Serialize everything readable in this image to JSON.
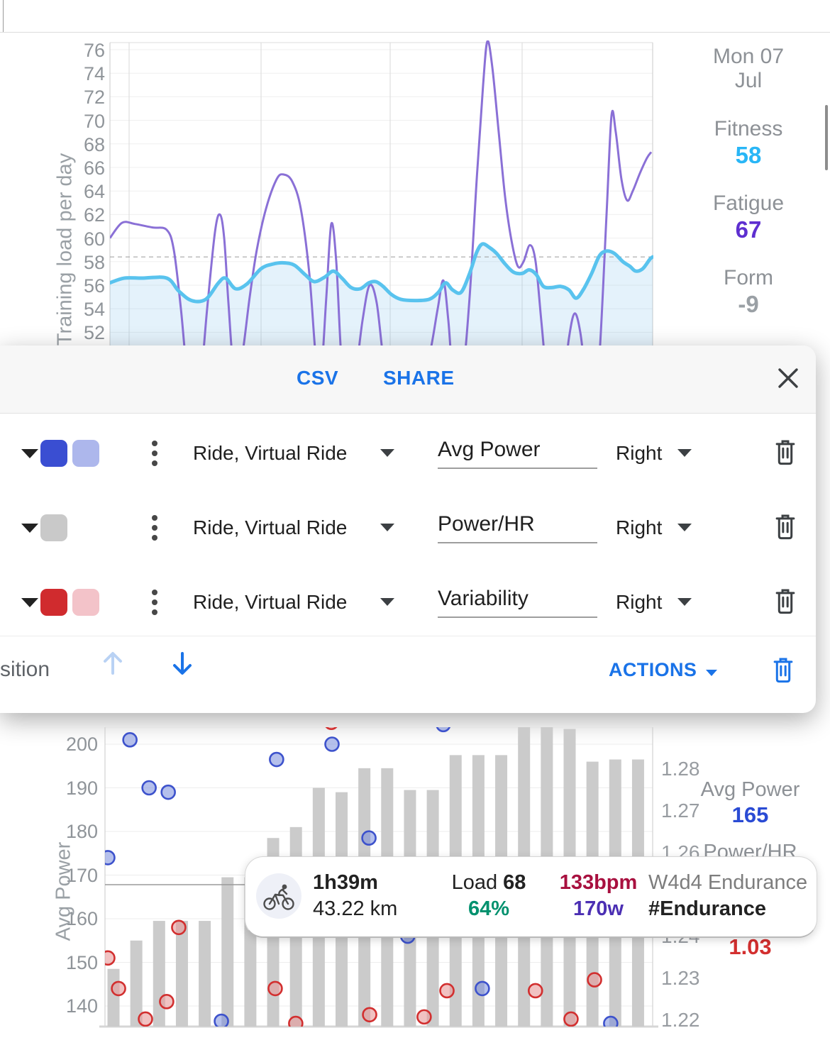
{
  "fitness_panel": {
    "date_line1": "Mon 07",
    "date_line2": "Jul",
    "fitness_label": "Fitness",
    "fitness_value": "58",
    "fitness_color": "#29b6f6",
    "fatigue_label": "Fatigue",
    "fatigue_value": "67",
    "fatigue_color": "#5e2fd0",
    "form_label": "Form",
    "form_value": "-9",
    "form_color": "#9aa0a5"
  },
  "dialog": {
    "csv_label": "CSV",
    "share_label": "SHARE",
    "rows": [
      {
        "sport": "Ride, Virtual Ride",
        "field": "Avg Power",
        "axis": "Right",
        "colors": [
          "#3a4ed2",
          "#adb7ec"
        ]
      },
      {
        "sport": "Ride, Virtual Ride",
        "field": "Power/HR",
        "axis": "Right",
        "colors": [
          "#c9c9c9"
        ]
      },
      {
        "sport": "Ride, Virtual Ride",
        "field": "Variability",
        "axis": "Right",
        "colors": [
          "#d02b2e",
          "#f3c3c9"
        ]
      }
    ],
    "footer": {
      "position_text": "sition",
      "actions_label": "ACTIONS"
    }
  },
  "power_panel": {
    "avg_power_label": "Avg Power",
    "avg_power_value": "165",
    "avg_power_color": "#2a4bd4",
    "power_hr_label": "Power/HR",
    "variability_label": "Variability",
    "variability_value": "1.03",
    "variability_color": "#d32f2f"
  },
  "tooltip": {
    "duration": "1h39m",
    "distance": "43.22 km",
    "load_label": "Load ",
    "load_value": "68",
    "intensity": "64%",
    "intensity_color": "#00916e",
    "heart_rate": "133bpm",
    "heart_rate_color": "#a8103f",
    "power": "170w",
    "power_color": "#4b2fb3",
    "title": "W4d4 Endurance",
    "tag": "#Endurance"
  },
  "chart_data": [
    {
      "id": "training_load",
      "type": "line",
      "ylabel": "Training load per day",
      "yticks": [
        76,
        74,
        72,
        70,
        68,
        66,
        64,
        62,
        60,
        58,
        56,
        54,
        52
      ],
      "ylim": [
        51,
        77
      ],
      "dashed_ref": 58.4,
      "x_gridlines": [
        182,
        368,
        550,
        736
      ],
      "series": [
        {
          "name": "Fitness",
          "color": "#59c3ee",
          "width": 5,
          "fill": "rgba(130,195,235,0.22)",
          "points": [
            [
              155,
              56.2
            ],
            [
              175,
              56.6
            ],
            [
              200,
              56.6
            ],
            [
              235,
              56.6
            ],
            [
              252,
              55.5
            ],
            [
              270,
              54.7
            ],
            [
              290,
              54.8
            ],
            [
              308,
              56.2
            ],
            [
              318,
              56.6
            ],
            [
              332,
              55.7
            ],
            [
              348,
              56.1
            ],
            [
              368,
              57.4
            ],
            [
              385,
              57.8
            ],
            [
              400,
              57.9
            ],
            [
              415,
              57.7
            ],
            [
              430,
              56.9
            ],
            [
              443,
              56.3
            ],
            [
              458,
              56.7
            ],
            [
              470,
              57.2
            ],
            [
              482,
              56.6
            ],
            [
              495,
              55.8
            ],
            [
              508,
              55.7
            ],
            [
              520,
              56.2
            ],
            [
              530,
              56.3
            ],
            [
              540,
              55.9
            ],
            [
              552,
              55.2
            ],
            [
              565,
              54.8
            ],
            [
              585,
              54.7
            ],
            [
              605,
              54.8
            ],
            [
              618,
              55.4
            ],
            [
              628,
              56.2
            ],
            [
              638,
              55.6
            ],
            [
              650,
              55.4
            ],
            [
              662,
              57
            ],
            [
              672,
              58.8
            ],
            [
              680,
              59.5
            ],
            [
              690,
              59.2
            ],
            [
              700,
              58.7
            ],
            [
              712,
              57.8
            ],
            [
              724,
              57.1
            ],
            [
              736,
              57
            ],
            [
              746,
              57.3
            ],
            [
              756,
              56.9
            ],
            [
              766,
              55.9
            ],
            [
              778,
              55.8
            ],
            [
              790,
              55.9
            ],
            [
              802,
              55.6
            ],
            [
              812,
              54.9
            ],
            [
              822,
              55.6
            ],
            [
              834,
              57
            ],
            [
              845,
              58.5
            ],
            [
              855,
              58.9
            ],
            [
              866,
              58.7
            ],
            [
              878,
              58
            ],
            [
              888,
              57.6
            ],
            [
              896,
              57.2
            ],
            [
              906,
              57.4
            ],
            [
              916,
              58.2
            ],
            [
              920,
              58.4
            ]
          ]
        },
        {
          "name": "Fatigue",
          "color": "#8a70d6",
          "width": 3,
          "points": [
            [
              155,
              60
            ],
            [
              172,
              61.3
            ],
            [
              190,
              61.2
            ],
            [
              215,
              60.9
            ],
            [
              235,
              60.7
            ],
            [
              245,
              59
            ],
            [
              255,
              54
            ],
            [
              263,
              49
            ],
            [
              272,
              46.5
            ],
            [
              282,
              47.5
            ],
            [
              292,
              54
            ],
            [
              303,
              60.5
            ],
            [
              310,
              62
            ],
            [
              316,
              60
            ],
            [
              322,
              54.5
            ],
            [
              330,
              48.5
            ],
            [
              340,
              49.5
            ],
            [
              352,
              55
            ],
            [
              362,
              59
            ],
            [
              375,
              62.5
            ],
            [
              390,
              65
            ],
            [
              400,
              65.4
            ],
            [
              412,
              64.8
            ],
            [
              424,
              62.5
            ],
            [
              436,
              57
            ],
            [
              445,
              50
            ],
            [
              452,
              48
            ],
            [
              460,
              55
            ],
            [
              467,
              61.2
            ],
            [
              474,
              58
            ],
            [
              481,
              50
            ],
            [
              489,
              46.5
            ],
            [
              500,
              48
            ],
            [
              511,
              53
            ],
            [
              521,
              56
            ],
            [
              531,
              54.5
            ],
            [
              541,
              49.5
            ],
            [
              552,
              46.8
            ],
            [
              570,
              47
            ],
            [
              590,
              48
            ],
            [
              605,
              50
            ],
            [
              617,
              54
            ],
            [
              625,
              56.4
            ],
            [
              632,
              53
            ],
            [
              640,
              47.5
            ],
            [
              652,
              48.5
            ],
            [
              662,
              55
            ],
            [
              672,
              65
            ],
            [
              681,
              73
            ],
            [
              687,
              76.7
            ],
            [
              694,
              74.5
            ],
            [
              703,
              69
            ],
            [
              712,
              63.5
            ],
            [
              721,
              59.8
            ],
            [
              730,
              57.6
            ],
            [
              738,
              58
            ],
            [
              747,
              59.4
            ],
            [
              755,
              58
            ],
            [
              763,
              53
            ],
            [
              772,
              47.5
            ],
            [
              782,
              45
            ],
            [
              792,
              46.5
            ],
            [
              802,
              51.5
            ],
            [
              810,
              53.6
            ],
            [
              818,
              52
            ],
            [
              826,
              48
            ],
            [
              835,
              44.5
            ],
            [
              845,
              50
            ],
            [
              855,
              62
            ],
            [
              862,
              70.4
            ],
            [
              868,
              69
            ],
            [
              876,
              65
            ],
            [
              884,
              63.2
            ],
            [
              892,
              64
            ],
            [
              902,
              65.5
            ],
            [
              912,
              66.8
            ],
            [
              918,
              67.3
            ]
          ]
        }
      ]
    },
    {
      "id": "avg_power",
      "type": "bar+scatter",
      "ylabel": "Avg Power",
      "left_ticks": [
        200,
        190,
        180,
        170,
        160,
        150,
        140
      ],
      "right_ticks": [
        "1.28",
        "1.27",
        "1.26",
        "1.24",
        "1.23",
        "1.22"
      ],
      "ref_line": 167.8,
      "bars": {
        "color": "#cbcbcb",
        "values": [
          148.5,
          155,
          159.5,
          159.5,
          159.5,
          169.5,
          169.5,
          178.5,
          181,
          190,
          189,
          194.5,
          194.5,
          189.5,
          189.5,
          197.5,
          197.5,
          197.5,
          205,
          205,
          203.5,
          196,
          196.5,
          196.5
        ]
      },
      "scatter": [
        {
          "name": "Avg Power",
          "color": "#3d52cc",
          "fill": "rgba(120,140,220,0.55)",
          "points": [
            [
              -0.25,
              174
            ],
            [
              0.72,
              201
            ],
            [
              1.56,
              190
            ],
            [
              2.4,
              189
            ],
            [
              4.73,
              136.5
            ],
            [
              7.15,
              196.5
            ],
            [
              9.58,
              200
            ],
            [
              11.2,
              178.5
            ],
            [
              12.9,
              156
            ],
            [
              14.46,
              204.5
            ],
            [
              16.17,
              144
            ],
            [
              21.8,
              136
            ]
          ]
        },
        {
          "name": "Variability",
          "color": "#d22f2f",
          "fill": "rgba(232,153,153,0.6)",
          "points": [
            [
              -0.25,
              151
            ],
            [
              0.22,
              144
            ],
            [
              1.4,
              137
            ],
            [
              2.33,
              141
            ],
            [
              2.86,
              158
            ],
            [
              7.09,
              144
            ],
            [
              7.99,
              136
            ],
            [
              9.55,
              205
            ],
            [
              11.23,
              138
            ],
            [
              13.62,
              137.5
            ],
            [
              14.62,
              143.5
            ],
            [
              16.17,
              157.5
            ],
            [
              18.5,
              143.5
            ],
            [
              20.06,
              137
            ],
            [
              21.09,
              146
            ]
          ]
        }
      ]
    }
  ]
}
